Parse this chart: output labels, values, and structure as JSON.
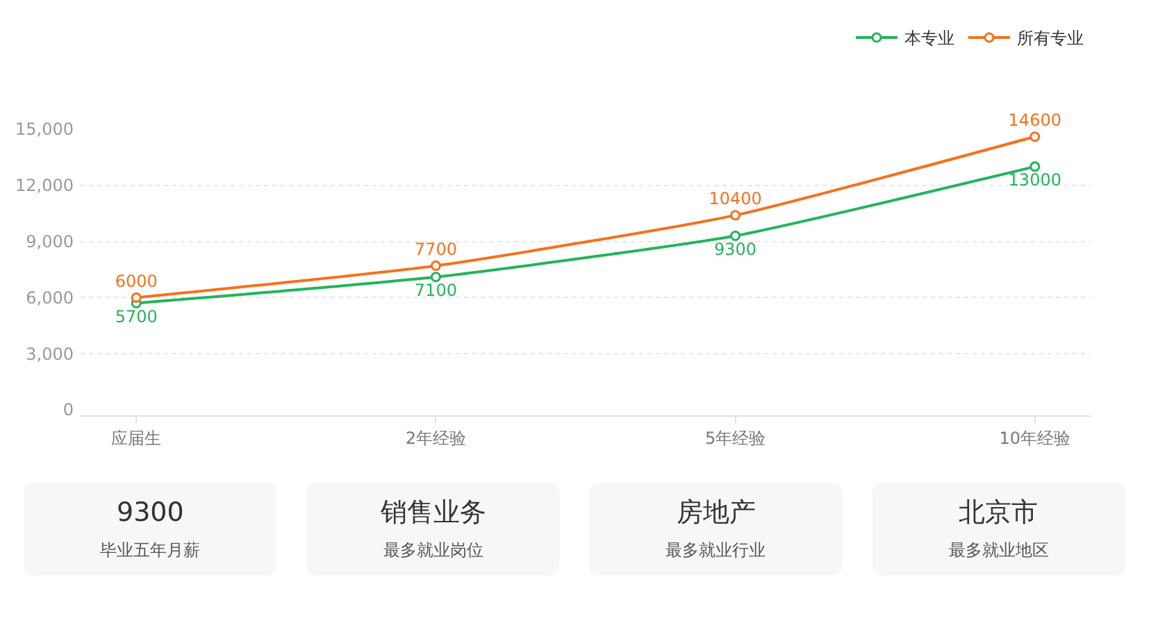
{
  "chart_data": [
    {
      "type": "line",
      "categories": [
        "应届生",
        "2年经验",
        "5年经验",
        "10年经验"
      ],
      "series": [
        {
          "name": "本专业",
          "color": "#22b45a",
          "values": [
            5700,
            7100,
            9300,
            13000
          ]
        },
        {
          "name": "所有专业",
          "color": "#f6701b",
          "values": [
            6000,
            7700,
            10400,
            14600
          ]
        }
      ],
      "ylim": [
        0,
        15000
      ],
      "yticks": [
        0,
        {
          "value": 3000,
          "label": "3,000"
        },
        {
          "value": 6000,
          "label": "6,000"
        },
        {
          "value": 9000,
          "label": "9,000"
        },
        {
          "value": 12000,
          "label": "12,000"
        },
        {
          "value": 15000,
          "label": "15,000"
        }
      ],
      "grid": "y",
      "legend": "top right",
      "marker": "circle",
      "data_labels": true
    },
    {
      "type": "other",
      "title": "9300",
      "subtitle": "毕业五年月薪"
    },
    {
      "type": "other",
      "title": "销售业务",
      "subtitle": "最多就业岗位"
    },
    {
      "type": "other",
      "title": "房地产",
      "subtitle": "最多就业行业"
    },
    {
      "type": "other",
      "title": "北京市",
      "subtitle": "最多就业地区"
    }
  ]
}
